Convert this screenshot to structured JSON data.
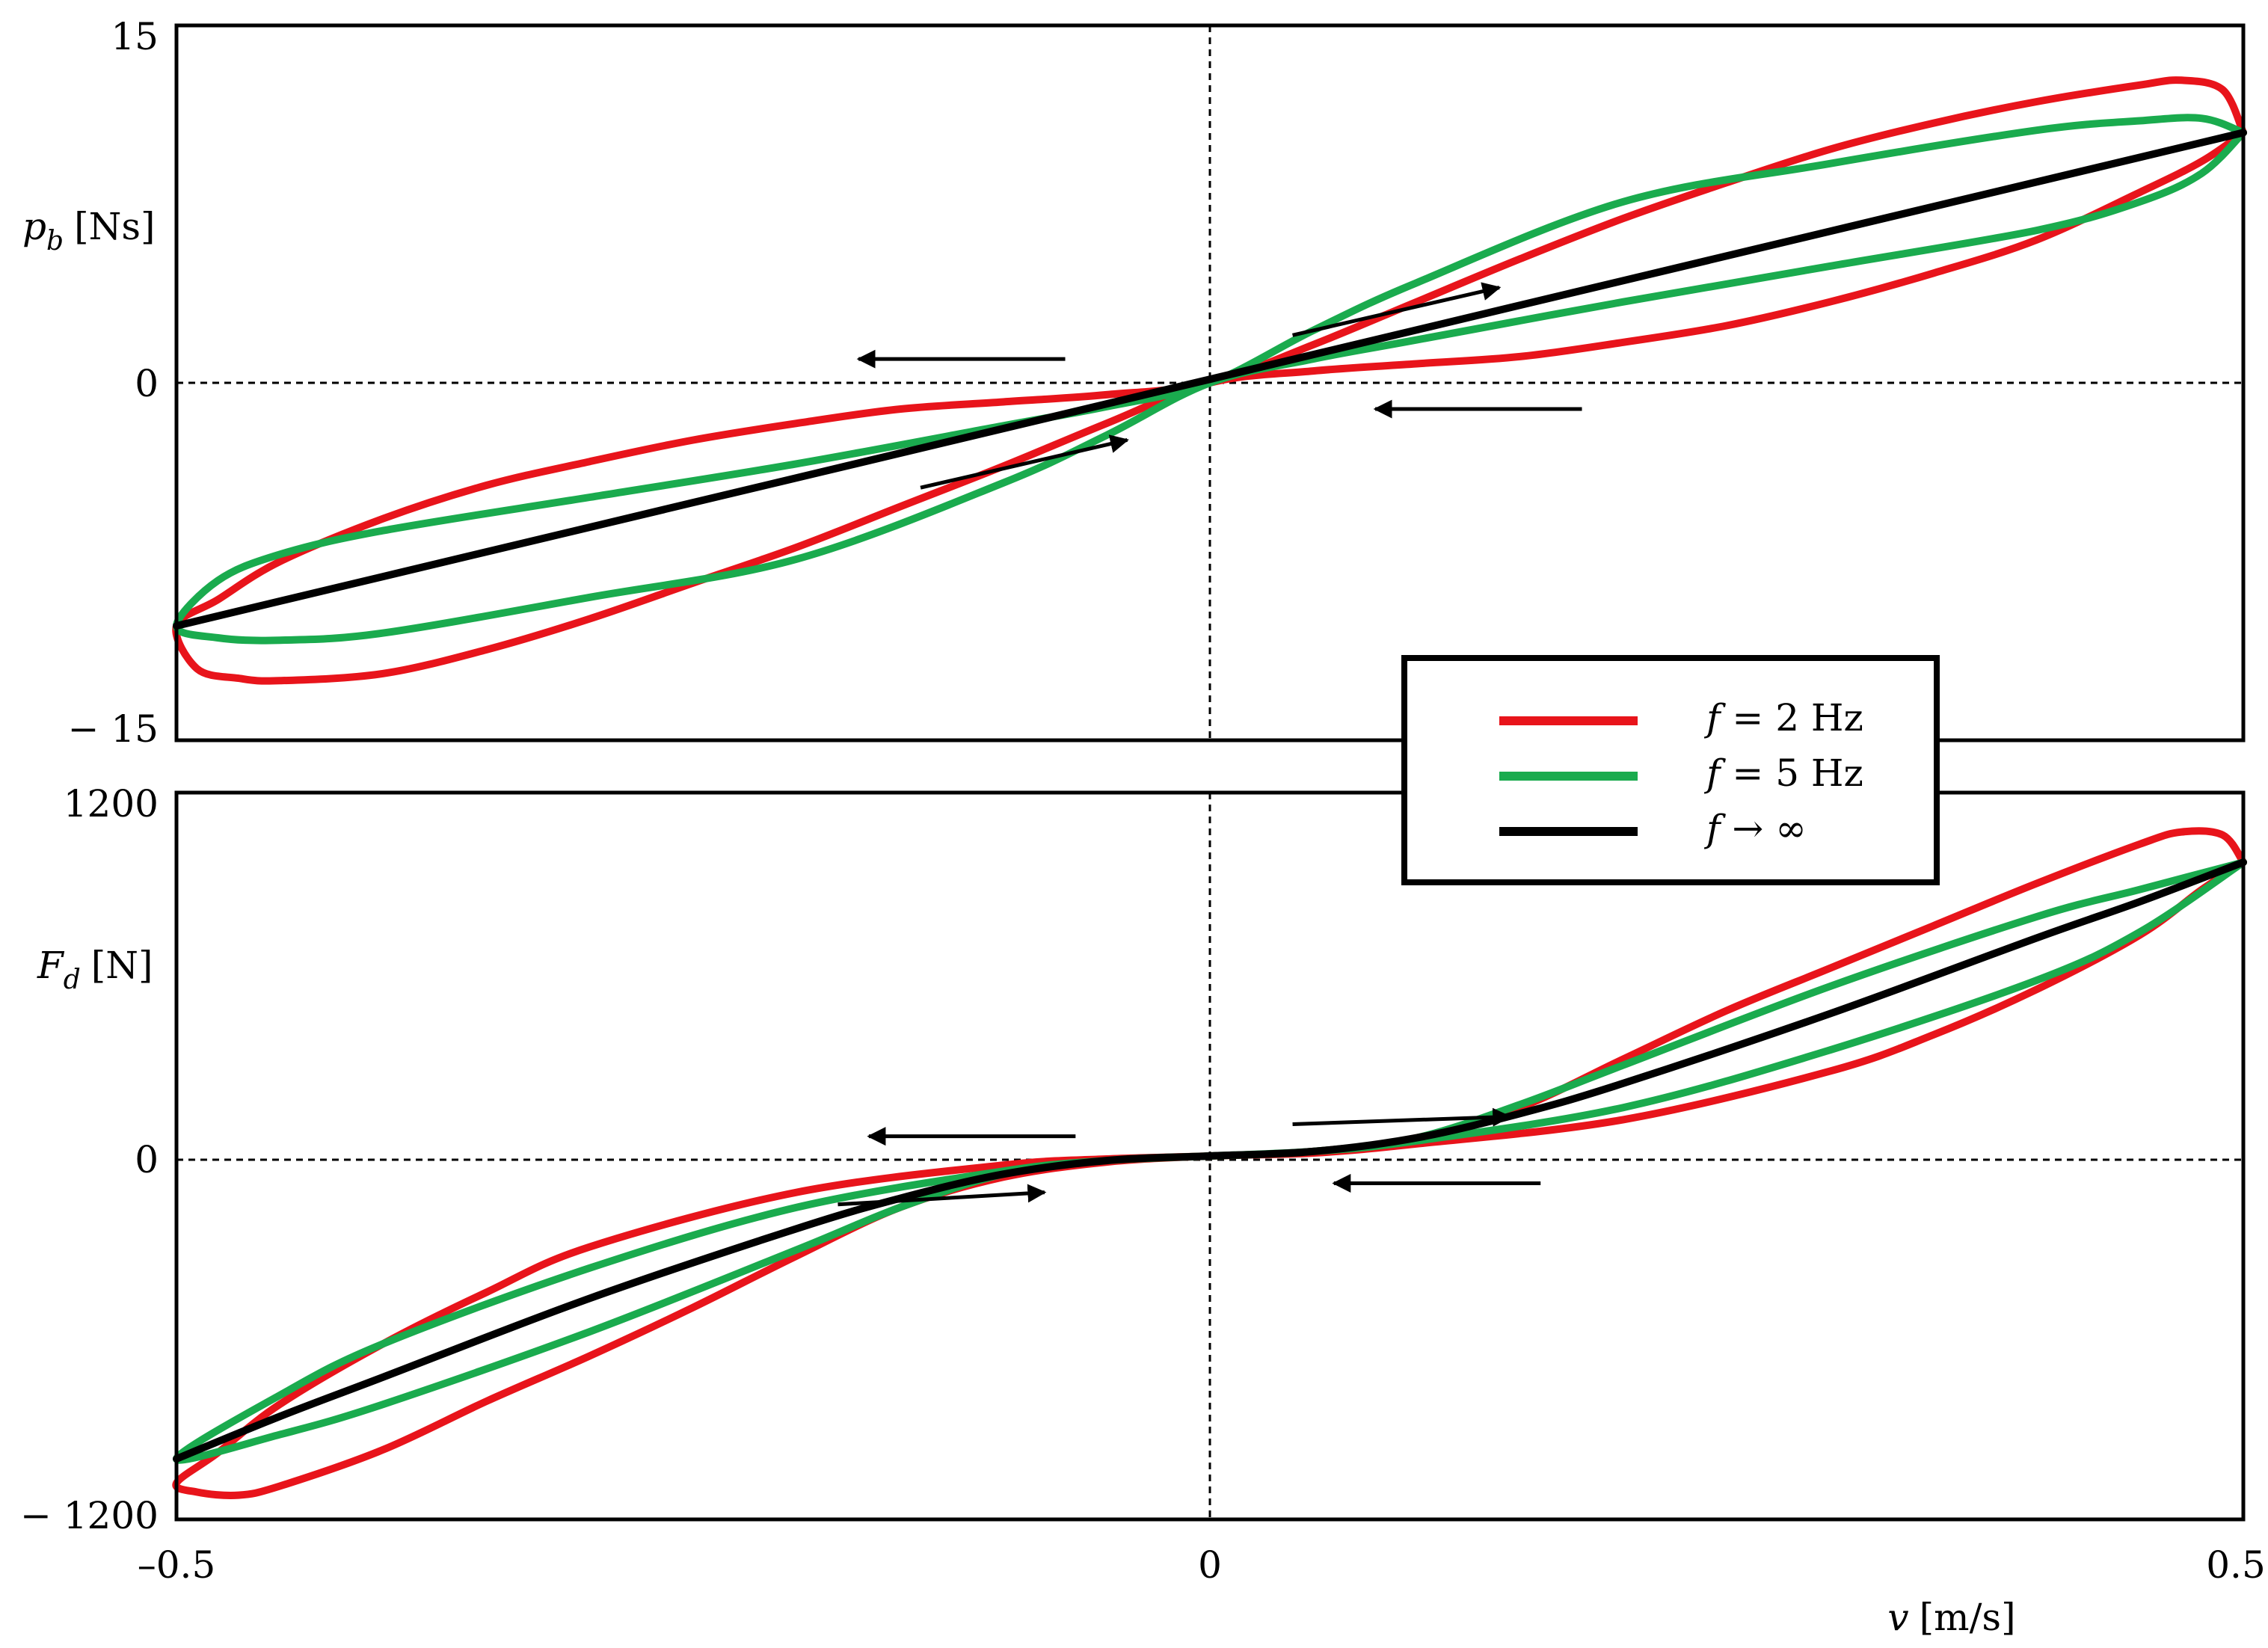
{
  "chart_data": [
    {
      "type": "line",
      "panel": "top",
      "ylabel": {
        "symbol": "p",
        "subscript": "b",
        "unit": "[Ns]"
      },
      "xlim": [
        -0.5,
        0.5
      ],
      "ylim": [
        -15,
        15
      ],
      "yticks": [
        "15",
        "0",
        "− 15"
      ],
      "grid": false,
      "zero_lines": "dashed",
      "series": [
        {
          "name": "f = 2 Hz",
          "color": "#e8141b",
          "loop_upper": {
            "x": [
              0.5,
              0.49,
              0.47,
              0.45,
              0.4,
              0.35,
              0.3,
              0.25,
              0.2,
              0.15,
              0.1,
              0.05,
              0.0,
              -0.05,
              -0.1,
              -0.15,
              -0.2,
              -0.25,
              -0.3,
              -0.35,
              -0.4,
              -0.45,
              -0.48,
              -0.5
            ],
            "y": [
              10.5,
              12.3,
              12.7,
              12.5,
              11.8,
              10.9,
              9.8,
              8.4,
              6.9,
              5.2,
              3.4,
              1.6,
              0.0,
              -0.5,
              -0.8,
              -1.1,
              -1.7,
              -2.4,
              -3.3,
              -4.3,
              -5.7,
              -7.5,
              -9.1,
              -10.2
            ]
          },
          "loop_lower": {
            "x": [
              -0.5,
              -0.49,
              -0.47,
              -0.45,
              -0.4,
              -0.35,
              -0.3,
              -0.25,
              -0.2,
              -0.15,
              -0.1,
              -0.05,
              0.0,
              0.05,
              0.1,
              0.15,
              0.2,
              0.25,
              0.3,
              0.35,
              0.4,
              0.45,
              0.48,
              0.5
            ],
            "y": [
              -10.2,
              -12.0,
              -12.4,
              -12.5,
              -12.2,
              -11.2,
              -9.9,
              -8.4,
              -6.9,
              -5.2,
              -3.5,
              -1.7,
              0.0,
              0.5,
              0.8,
              1.1,
              1.7,
              2.4,
              3.4,
              4.6,
              6.0,
              8.0,
              9.3,
              10.5
            ]
          }
        },
        {
          "name": "f = 5 Hz",
          "color": "#1aab4e",
          "loop_upper": {
            "x": [
              0.5,
              0.48,
              0.45,
              0.4,
              0.3,
              0.2,
              0.1,
              0.05,
              0.0,
              -0.05,
              -0.1,
              -0.2,
              -0.3,
              -0.4,
              -0.45,
              -0.48,
              -0.5
            ],
            "y": [
              10.5,
              11.1,
              11.0,
              10.6,
              9.2,
              7.6,
              4.2,
              2.2,
              0.0,
              -1.0,
              -1.8,
              -3.4,
              -4.8,
              -6.2,
              -7.2,
              -8.3,
              -10.2
            ]
          },
          "loop_lower": {
            "x": [
              -0.5,
              -0.48,
              -0.45,
              -0.4,
              -0.3,
              -0.2,
              -0.1,
              -0.05,
              0.0,
              0.05,
              0.1,
              0.2,
              0.3,
              0.4,
              0.45,
              0.48,
              0.5
            ],
            "y": [
              -10.2,
              -10.7,
              -10.8,
              -10.5,
              -9.0,
              -7.4,
              -4.2,
              -2.2,
              0.0,
              1.0,
              1.8,
              3.4,
              4.9,
              6.4,
              7.6,
              8.8,
              10.5
            ]
          }
        },
        {
          "name": "f → ∞",
          "color": "#000000",
          "x": [
            -0.5,
            0.5
          ],
          "y": [
            -10.2,
            10.5
          ]
        }
      ],
      "arrows": [
        {
          "from": [
            -0.07,
            1.0
          ],
          "to": [
            -0.17,
            1.0
          ]
        },
        {
          "from": [
            0.04,
            2.0
          ],
          "to": [
            0.14,
            4.0
          ]
        },
        {
          "from": [
            0.18,
            -1.1
          ],
          "to": [
            0.08,
            -1.1
          ]
        },
        {
          "from": [
            -0.14,
            -4.4
          ],
          "to": [
            -0.04,
            -2.4
          ]
        }
      ]
    },
    {
      "type": "line",
      "panel": "bottom",
      "ylabel": {
        "symbol": "F",
        "subscript": "d",
        "unit": "[N]"
      },
      "xlabel": {
        "symbol": "v",
        "unit": "[m/s]"
      },
      "xlim": [
        -0.5,
        0.5
      ],
      "ylim": [
        -1200,
        1200
      ],
      "xticks": [
        "–0.5",
        "0",
        "0.5"
      ],
      "yticks": [
        "1200",
        "0",
        "− 1200"
      ],
      "grid": false,
      "zero_lines": "dashed",
      "series": [
        {
          "name": "f = 2 Hz",
          "color": "#e8141b",
          "loop_upper": {
            "x": [
              0.5,
              0.49,
              0.47,
              0.45,
              0.4,
              0.35,
              0.3,
              0.25,
              0.2,
              0.15,
              0.1,
              0.05,
              0.0,
              -0.05,
              -0.1,
              -0.2,
              -0.3,
              -0.35,
              -0.4,
              -0.45,
              -0.48,
              -0.5
            ],
            "y": [
              970,
              1060,
              1070,
              1030,
              900,
              760,
              620,
              480,
              320,
              160,
              60,
              15,
              0,
              -10,
              -30,
              -120,
              -300,
              -450,
              -620,
              -820,
              -980,
              -1080
            ]
          },
          "loop_lower": {
            "x": [
              -0.5,
              -0.49,
              -0.47,
              -0.45,
              -0.4,
              -0.35,
              -0.3,
              -0.25,
              -0.2,
              -0.15,
              -0.1,
              -0.05,
              0.0,
              0.05,
              0.1,
              0.2,
              0.3,
              0.35,
              0.4,
              0.45,
              0.48,
              0.5
            ],
            "y": [
              -1080,
              -1110,
              -1120,
              -1090,
              -970,
              -810,
              -660,
              -500,
              -330,
              -170,
              -70,
              -20,
              0,
              10,
              40,
              120,
              280,
              400,
              550,
              730,
              880,
              970
            ]
          }
        },
        {
          "name": "f = 5 Hz",
          "color": "#1aab4e",
          "loop_upper": {
            "x": [
              0.5,
              0.45,
              0.4,
              0.3,
              0.2,
              0.15,
              0.1,
              0.05,
              0.0,
              -0.05,
              -0.1,
              -0.2,
              -0.3,
              -0.4,
              -0.45,
              -0.5
            ],
            "y": [
              970,
              880,
              790,
              560,
              300,
              170,
              60,
              15,
              0,
              -15,
              -50,
              -170,
              -370,
              -620,
              -790,
              -1000
            ]
          },
          "loop_lower": {
            "x": [
              -0.5,
              -0.45,
              -0.4,
              -0.3,
              -0.2,
              -0.15,
              -0.1,
              -0.05,
              0.0,
              0.05,
              0.1,
              0.2,
              0.3,
              0.4,
              0.45,
              0.5
            ],
            "y": [
              -1000,
              -920,
              -820,
              -580,
              -310,
              -170,
              -60,
              -15,
              0,
              15,
              50,
              160,
              350,
              580,
              740,
              970
            ]
          }
        },
        {
          "name": "f → ∞",
          "color": "#000000",
          "x": [
            -0.5,
            -0.45,
            -0.4,
            -0.3,
            -0.2,
            -0.15,
            -0.1,
            -0.05,
            0.0,
            0.05,
            0.1,
            0.15,
            0.2,
            0.3,
            0.4,
            0.45,
            0.5
          ],
          "y": [
            -1000,
            -860,
            -730,
            -470,
            -240,
            -140,
            -60,
            -15,
            0,
            15,
            60,
            140,
            240,
            470,
            720,
            840,
            970
          ]
        }
      ],
      "arrows": [
        {
          "from": [
            -0.065,
            65
          ],
          "to": [
            -0.165,
            65
          ]
        },
        {
          "from": [
            0.04,
            105
          ],
          "to": [
            0.145,
            130
          ]
        },
        {
          "from": [
            0.16,
            -90
          ],
          "to": [
            0.06,
            -90
          ]
        },
        {
          "from": [
            -0.18,
            -160
          ],
          "to": [
            -0.08,
            -120
          ]
        }
      ]
    }
  ],
  "legend": {
    "entries": [
      {
        "symbol": "f",
        "text": " = 2 Hz",
        "color": "#e8141b"
      },
      {
        "symbol": "f",
        "text": " = 5 Hz",
        "color": "#1aab4e"
      },
      {
        "symbol": "f",
        "text": " → ∞",
        "color": "#000000"
      }
    ]
  }
}
